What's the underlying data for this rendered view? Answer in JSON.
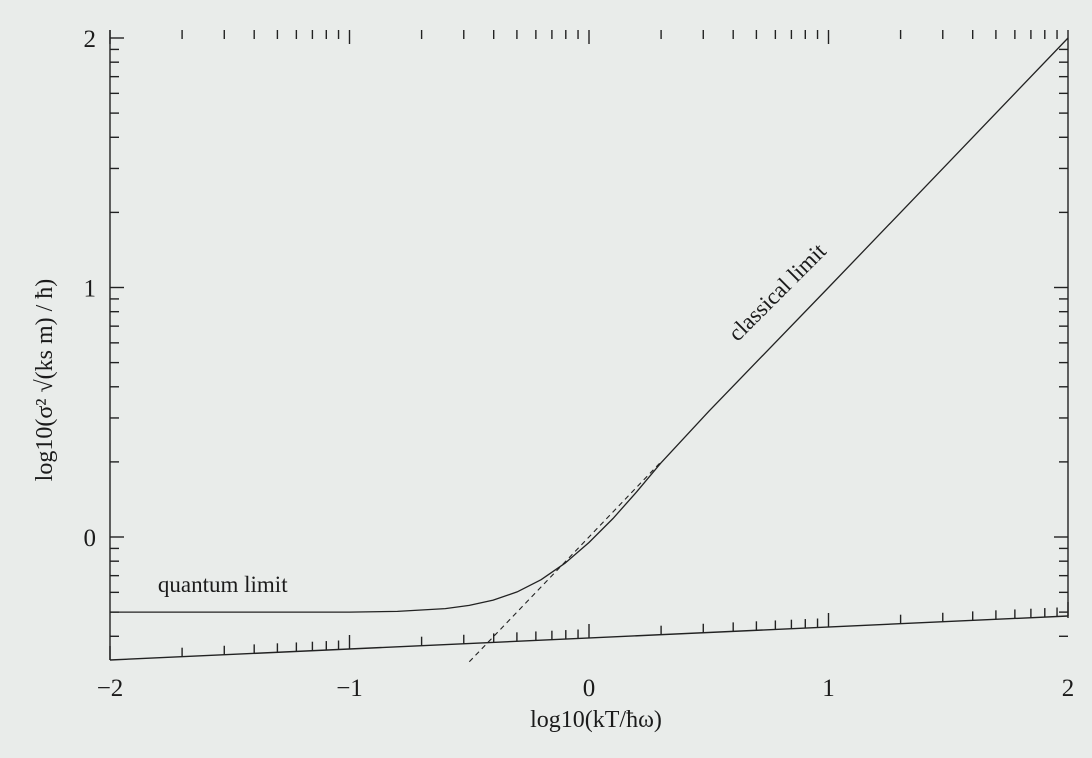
{
  "chart_data": {
    "type": "line",
    "title": "",
    "xlabel": "log10(kT/ħω)",
    "ylabel": "log10(σ² √(ks m) / ħ)",
    "xlim": [
      -2,
      2
    ],
    "ylim": [
      -0.4,
      2
    ],
    "x_log_scale": true,
    "y_log_scale": true,
    "grid": false,
    "x_ticks": [
      -2,
      -1,
      0,
      1,
      2
    ],
    "x_tick_labels": [
      "−2",
      "−1",
      "0",
      "1",
      "2"
    ],
    "y_ticks": [
      0,
      1,
      2
    ],
    "y_tick_labels": [
      "0",
      "1",
      "2"
    ],
    "series": [
      {
        "style": "solid",
        "x": [
          -2.0,
          -1.5,
          -1.0,
          -0.8,
          -0.6,
          -0.5,
          -0.4,
          -0.3,
          -0.2,
          -0.1,
          0.0,
          0.1,
          0.2,
          0.3,
          0.5,
          1.0,
          1.5,
          2.0
        ],
        "y": [
          -0.301,
          -0.301,
          -0.301,
          -0.298,
          -0.287,
          -0.274,
          -0.253,
          -0.22,
          -0.171,
          -0.105,
          -0.022,
          0.074,
          0.182,
          0.296,
          0.504,
          1.0,
          1.5,
          2.0
        ]
      },
      {
        "style": "dashed",
        "x": [
          -0.5,
          0.3
        ],
        "y": [
          -0.5,
          0.3
        ]
      }
    ],
    "annotations": [
      {
        "text": "quantum limit",
        "x": -1.8,
        "y": -0.22
      },
      {
        "text": "classical limit",
        "x": 0.62,
        "y": 0.78,
        "rotation_deg": -45
      }
    ]
  }
}
